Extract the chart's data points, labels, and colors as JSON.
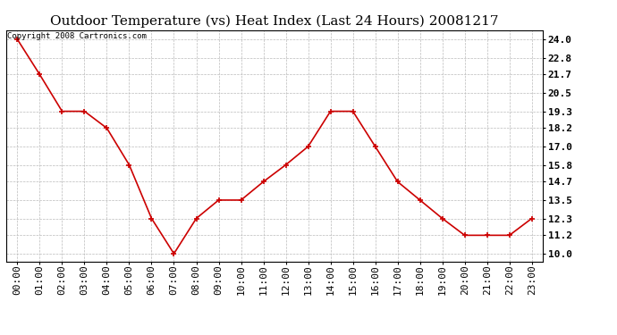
{
  "title": "Outdoor Temperature (vs) Heat Index (Last 24 Hours) 20081217",
  "copyright": "Copyright 2008 Cartronics.com",
  "x_labels": [
    "00:00",
    "01:00",
    "02:00",
    "03:00",
    "04:00",
    "05:00",
    "06:00",
    "07:00",
    "08:00",
    "09:00",
    "10:00",
    "11:00",
    "12:00",
    "13:00",
    "14:00",
    "15:00",
    "16:00",
    "17:00",
    "18:00",
    "19:00",
    "20:00",
    "21:00",
    "22:00",
    "23:00"
  ],
  "y_values": [
    24.0,
    21.7,
    19.3,
    19.3,
    18.2,
    15.8,
    12.3,
    10.0,
    12.3,
    13.5,
    13.5,
    14.7,
    15.8,
    17.0,
    19.3,
    19.3,
    17.0,
    14.7,
    13.5,
    12.3,
    11.2,
    11.2,
    11.2,
    12.3
  ],
  "y_ticks": [
    10.0,
    11.2,
    12.3,
    13.5,
    14.7,
    15.8,
    17.0,
    18.2,
    19.3,
    20.5,
    21.7,
    22.8,
    24.0
  ],
  "line_color": "#cc0000",
  "marker_color": "#cc0000",
  "bg_color": "#ffffff",
  "plot_bg_color": "#ffffff",
  "grid_color": "#bbbbbb",
  "title_fontsize": 11,
  "copyright_fontsize": 6.5,
  "tick_fontsize": 8
}
